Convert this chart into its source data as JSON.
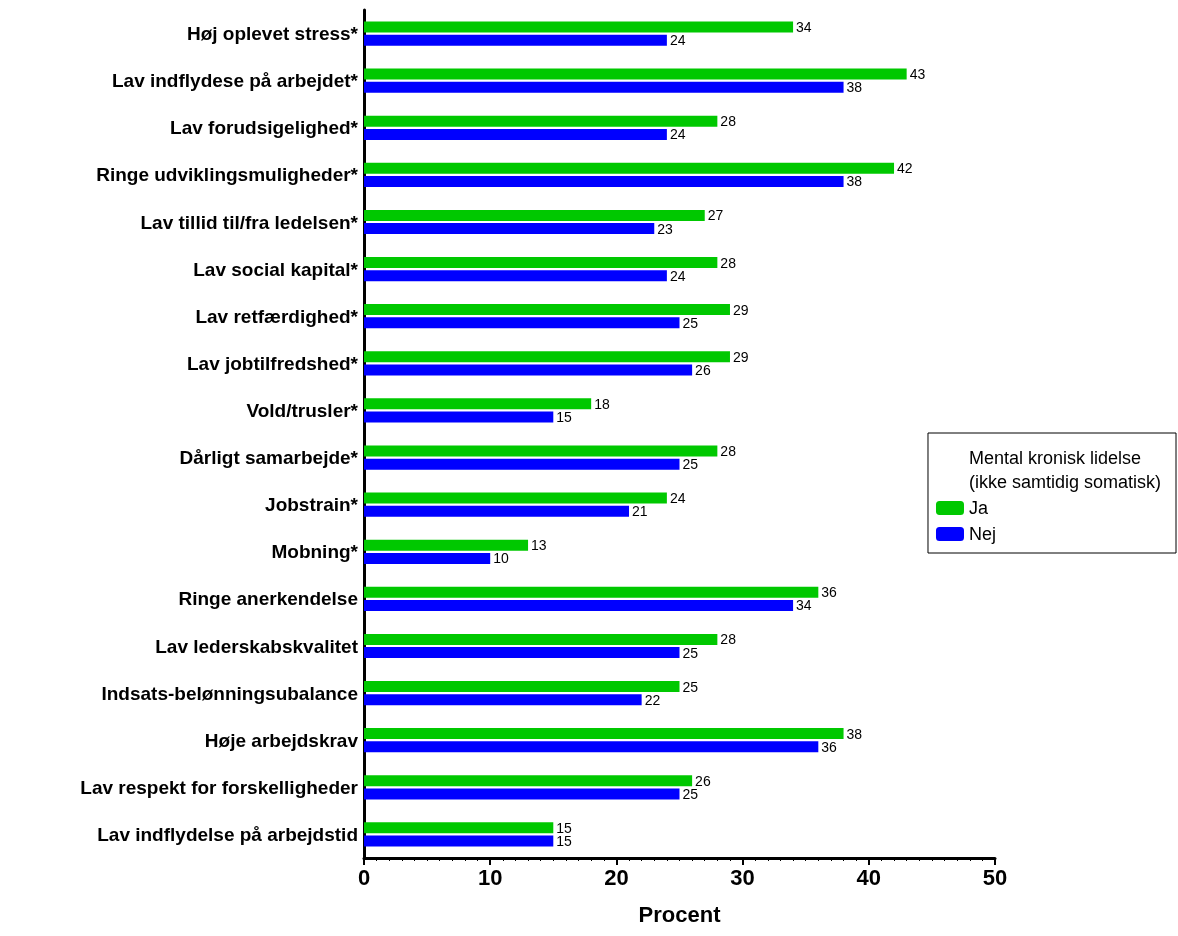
{
  "chart_data": {
    "type": "bar",
    "orientation": "horizontal",
    "xlabel": "Procent",
    "legend_title": "Mental kronisk lidelse\n(ikke samtidig somatisk)",
    "legend": "right",
    "data_labels": true,
    "grid": false,
    "categories": [
      "Høj oplevet stress*",
      "Lav indflydese på arbejdet*",
      "Lav forudsigelighed*",
      "Ringe udviklingsmuligheder*",
      "Lav tillid til/fra ledelsen*",
      "Lav social kapital*",
      "Lav retfærdighed*",
      "Lav jobtilfredshed*",
      "Vold/trusler*",
      "Dårligt samarbejde*",
      "Jobstrain*",
      "Mobning*",
      "Ringe anerkendelse",
      "Lav lederskabskvalitet",
      "Indsats-belønningsubalance",
      "Høje arbejdskrav",
      "Lav respekt for forskelligheder",
      "Lav indflydelse på arbejdstid"
    ],
    "xlim": [
      0,
      50
    ],
    "xticks": [
      0,
      10,
      20,
      30,
      40,
      50
    ],
    "series": [
      {
        "name": "Ja",
        "color": "#00c800",
        "values": [
          34,
          43,
          28,
          42,
          27,
          28,
          29,
          29,
          18,
          28,
          24,
          13,
          36,
          28,
          25,
          38,
          26,
          15
        ]
      },
      {
        "name": "Nej",
        "color": "#0000ff",
        "values": [
          24,
          38,
          24,
          38,
          23,
          24,
          25,
          26,
          15,
          25,
          21,
          10,
          34,
          25,
          22,
          36,
          25,
          15
        ]
      }
    ]
  }
}
